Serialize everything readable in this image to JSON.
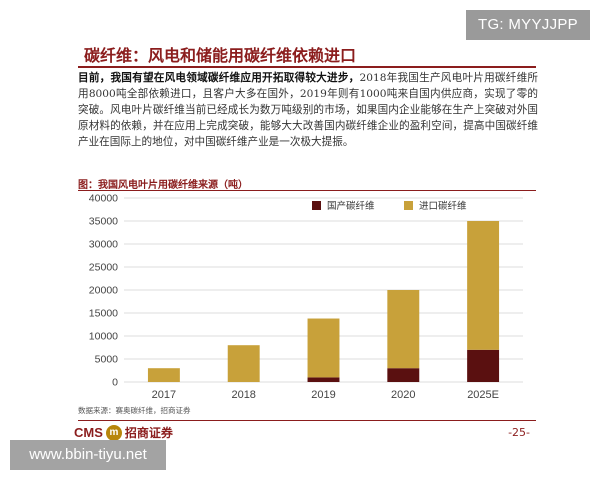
{
  "watermark_top": "TG: MYYJJPP",
  "watermark_bottom": "www.bbin-tiyu.net",
  "headline": "碳纤维：风电和储能用碳纤维依赖进口",
  "paragraph_lead": "目前，我国有望在风电领域碳纤维应用开拓取得较大进步，",
  "paragraph_lines": [
    "2018年我国生产风电叶",
    "片用碳纤维所用8000吨全部依赖进口，且客户大多在国外，2019年则有1000吨来自",
    "国内供应商，实现了零的突破。风电叶片碳纤维当前已经成长为数万吨级别的市场，",
    "如果国内企业能够在生产上突破对外国原材料的依赖，并在应用上完成突破，能够",
    "大大改善国内碳纤维企业的盈利空间，提高中国碳纤维产业在国际上的地位，对中",
    "国碳纤维产业是一次极大提振。"
  ],
  "chart_heading": "图：我国风电叶片用碳纤维来源（吨）",
  "source": "数据来源：赛奥碳纤维，招商证券",
  "logo_latin": "CMS",
  "logo_mark": "m",
  "logo_cn": "招商证券",
  "page_number": "-25-",
  "colors": {
    "domestic": "#5a1010",
    "import": "#c8a13a",
    "accent": "#8b1d1d"
  },
  "chart_data": {
    "type": "bar",
    "stacked": true,
    "categories": [
      "2017",
      "2018",
      "2019",
      "2020",
      "2025E"
    ],
    "series": [
      {
        "name": "国产碳纤维",
        "values": [
          0,
          0,
          1000,
          3000,
          7000
        ]
      },
      {
        "name": "进口碳纤维",
        "values": [
          3000,
          8000,
          12800,
          17000,
          28000
        ]
      }
    ],
    "ylim": [
      0,
      40000
    ],
    "yticks": [
      "0",
      "5000",
      "10000",
      "15000",
      "20000",
      "25000",
      "30000",
      "35000",
      "40000"
    ],
    "grid": true,
    "legend": "top-right"
  }
}
